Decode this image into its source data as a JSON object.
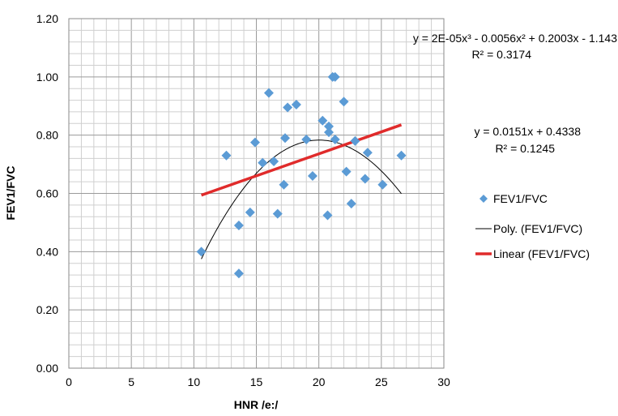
{
  "chart_data": {
    "type": "scatter",
    "xlabel": "HNR  /e:/",
    "ylabel": "FEV1/FVC",
    "xlim": [
      0,
      30
    ],
    "ylim": [
      0,
      1.2
    ],
    "x_ticks": [
      "0",
      "5",
      "10",
      "15",
      "20",
      "25",
      "30"
    ],
    "y_ticks": [
      "0.00",
      "0.20",
      "0.40",
      "0.60",
      "0.80",
      "1.00",
      "1.20"
    ],
    "grid": true,
    "legend_position": "right",
    "series": [
      {
        "name": "FEV1/FVC",
        "color": "#5b9bd5",
        "marker": "diamond",
        "points": [
          [
            10.6,
            0.4
          ],
          [
            12.6,
            0.73
          ],
          [
            13.6,
            0.49
          ],
          [
            13.6,
            0.325
          ],
          [
            14.5,
            0.535
          ],
          [
            14.9,
            0.775
          ],
          [
            15.5,
            0.705
          ],
          [
            16.0,
            0.945
          ],
          [
            16.4,
            0.71
          ],
          [
            16.7,
            0.53
          ],
          [
            17.2,
            0.63
          ],
          [
            17.3,
            0.79
          ],
          [
            17.5,
            0.895
          ],
          [
            18.2,
            0.905
          ],
          [
            19.0,
            0.785
          ],
          [
            19.5,
            0.66
          ],
          [
            20.3,
            0.85
          ],
          [
            20.7,
            0.525
          ],
          [
            20.8,
            0.83
          ],
          [
            20.8,
            0.81
          ],
          [
            21.1,
            1.0
          ],
          [
            21.3,
            1.0
          ],
          [
            21.3,
            0.785
          ],
          [
            22.0,
            0.915
          ],
          [
            22.2,
            0.675
          ],
          [
            22.6,
            0.565
          ],
          [
            22.9,
            0.78
          ],
          [
            23.7,
            0.65
          ],
          [
            23.9,
            0.74
          ],
          [
            25.1,
            0.63
          ],
          [
            26.6,
            0.73
          ]
        ]
      },
      {
        "name": "Poly. (FEV1/FVC)",
        "color": "#000000",
        "type": "polynomial-trend",
        "coefficients": [
          -1.143,
          0.2003,
          -0.0056,
          2e-05
        ],
        "x_range": [
          10.6,
          26.6
        ]
      },
      {
        "name": "Linear (FEV1/FVC)",
        "color": "#e02b2b",
        "type": "linear-trend",
        "coefficients": [
          0.4338,
          0.0151
        ],
        "x_range": [
          10.6,
          26.6
        ]
      }
    ],
    "annotations": [
      "y = 2E-05x³ - 0.0056x² + 0.2003x - 1.143",
      "R² = 0.3174",
      "y = 0.0151x + 0.4338",
      "R² = 0.1245"
    ]
  }
}
